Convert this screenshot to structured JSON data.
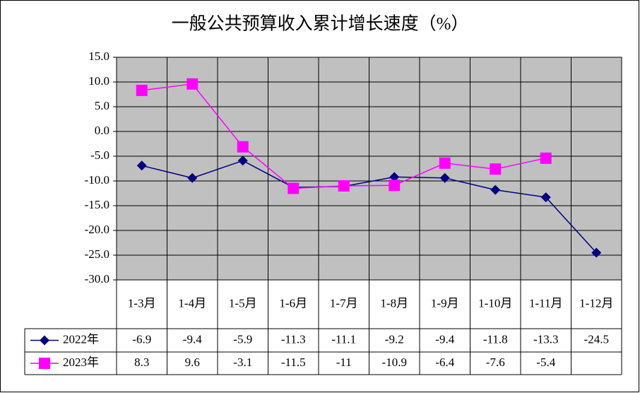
{
  "chart_data": {
    "type": "line",
    "title": "一般公共预算收入累计增长速度（%）",
    "categories": [
      "1-3月",
      "1-4月",
      "1-5月",
      "1-6月",
      "1-7月",
      "1-8月",
      "1-9月",
      "1-10月",
      "1-11月",
      "1-12月"
    ],
    "series": [
      {
        "name": "2022年",
        "color": "#000080",
        "marker": "diamond",
        "values": [
          -6.9,
          -9.4,
          -5.9,
          -11.3,
          -11.1,
          -9.2,
          -9.4,
          -11.8,
          -13.3,
          -24.5
        ]
      },
      {
        "name": "2023年",
        "color": "#ff00ff",
        "marker": "square",
        "values": [
          8.3,
          9.6,
          -3.1,
          -11.5,
          -11.0,
          -10.9,
          -6.4,
          -7.6,
          -5.4,
          null
        ]
      }
    ],
    "ylim": [
      -30,
      15
    ],
    "yticks": [
      {
        "value": 15,
        "label": "15.0"
      },
      {
        "value": 10,
        "label": "10.0"
      },
      {
        "value": 5,
        "label": "5.0"
      },
      {
        "value": 0,
        "label": "0.0"
      },
      {
        "value": -5,
        "label": "-5.0"
      },
      {
        "value": -10,
        "label": "-10.0"
      },
      {
        "value": -15,
        "label": "-15.0"
      },
      {
        "value": -20,
        "label": "-20.0"
      },
      {
        "value": -25,
        "label": "-25.0"
      },
      {
        "value": -30,
        "label": "-30.0"
      }
    ],
    "grid": true,
    "plot_background": "#c0c0c0"
  }
}
